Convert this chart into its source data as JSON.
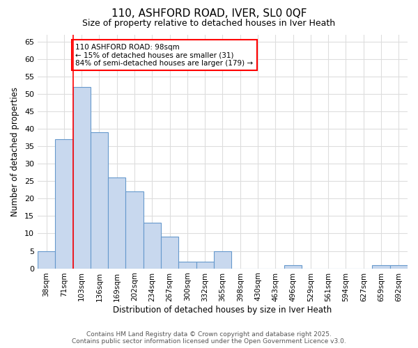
{
  "title1": "110, ASHFORD ROAD, IVER, SL0 0QF",
  "title2": "Size of property relative to detached houses in Iver Heath",
  "xlabel": "Distribution of detached houses by size in Iver Heath",
  "ylabel": "Number of detached properties",
  "bin_labels": [
    "38sqm",
    "71sqm",
    "103sqm",
    "136sqm",
    "169sqm",
    "202sqm",
    "234sqm",
    "267sqm",
    "300sqm",
    "332sqm",
    "365sqm",
    "398sqm",
    "430sqm",
    "463sqm",
    "496sqm",
    "529sqm",
    "561sqm",
    "594sqm",
    "627sqm",
    "659sqm",
    "692sqm"
  ],
  "bar_values": [
    5,
    37,
    52,
    39,
    26,
    22,
    13,
    9,
    2,
    2,
    5,
    0,
    0,
    0,
    1,
    0,
    0,
    0,
    0,
    1,
    1
  ],
  "bar_color": "#c8d8ee",
  "bar_edge_color": "#6699cc",
  "red_line_bin_index": 2,
  "annotation_line1": "110 ASHFORD ROAD: 98sqm",
  "annotation_line2": "← 15% of detached houses are smaller (31)",
  "annotation_line3": "84% of semi-detached houses are larger (179) →",
  "ylim": [
    0,
    67
  ],
  "yticks": [
    0,
    5,
    10,
    15,
    20,
    25,
    30,
    35,
    40,
    45,
    50,
    55,
    60,
    65
  ],
  "footer1": "Contains HM Land Registry data © Crown copyright and database right 2025.",
  "footer2": "Contains public sector information licensed under the Open Government Licence v3.0.",
  "bg_color": "#ffffff",
  "grid_color": "#dddddd"
}
